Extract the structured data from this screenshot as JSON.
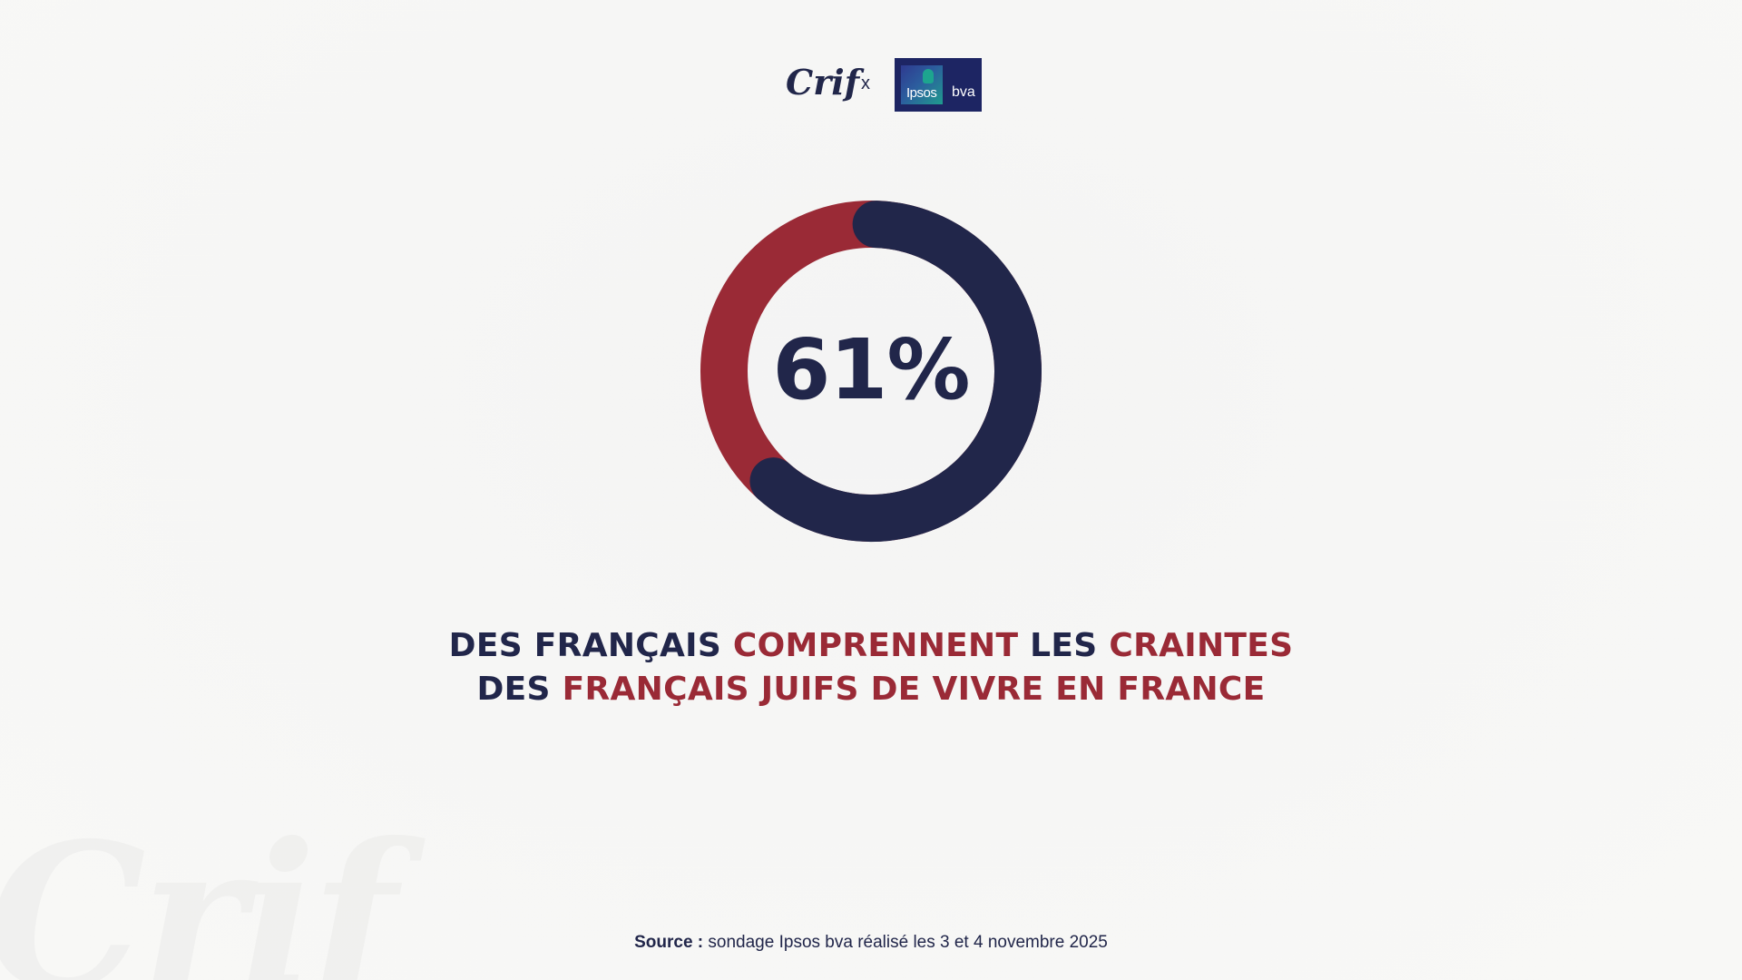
{
  "colors": {
    "navy": "#21264a",
    "red": "#9a2a36",
    "watermark": "#ebebea",
    "background": "#f6f6f4"
  },
  "logos": {
    "crif": "Crif",
    "separator": "x",
    "ipsos": "Ipsos",
    "bva": "bva"
  },
  "chart_data": {
    "type": "pie",
    "style": "donut",
    "value_label": "61%",
    "slices": [
      {
        "value": 61,
        "color": "#21264a"
      },
      {
        "value": 39,
        "color": "#9a2a36"
      }
    ]
  },
  "headline": {
    "segments": [
      {
        "text": "DES FRANÇAIS ",
        "color": "navy"
      },
      {
        "text": "COMPRENNENT",
        "color": "red"
      },
      {
        "text": " LES ",
        "color": "navy"
      },
      {
        "text": "CRAINTES",
        "color": "red"
      },
      {
        "text": " DES ",
        "color": "navy"
      },
      {
        "text": "FRANÇAIS JUIFS DE VIVRE EN FRANCE",
        "color": "red"
      }
    ]
  },
  "source": {
    "label": "Source :",
    "text": " sondage Ipsos bva réalisé les 3 et 4 novembre 2025"
  },
  "watermark_text": "Crif"
}
